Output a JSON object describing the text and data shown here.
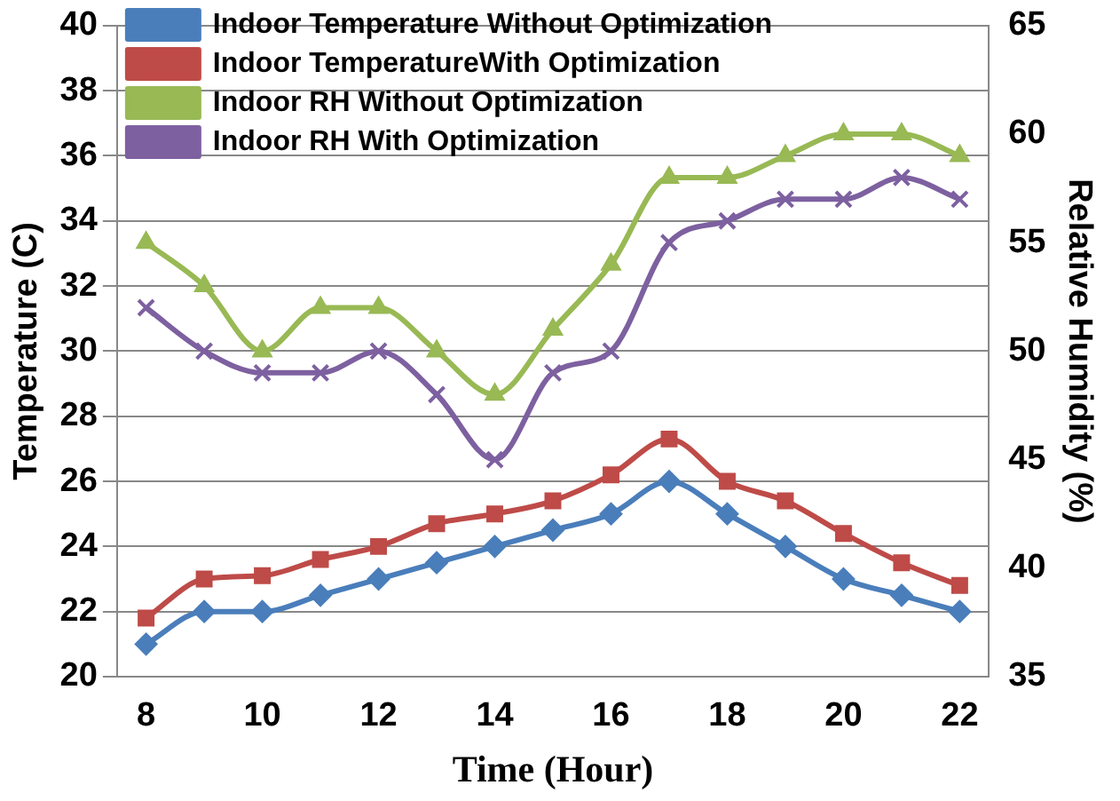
{
  "chart_data": {
    "type": "line",
    "xlabel": "Time (Hour)",
    "ylabel": "Temperature (C)",
    "y2label": "Relative Humidity (%)",
    "x": [
      8,
      9,
      10,
      11,
      12,
      13,
      14,
      15,
      16,
      17,
      18,
      19,
      20,
      21,
      22
    ],
    "xlim": [
      7.5,
      22.5
    ],
    "xticks": [
      8,
      10,
      12,
      14,
      16,
      18,
      20,
      22
    ],
    "ylim": [
      20,
      40
    ],
    "yticks": [
      20,
      22,
      24,
      26,
      28,
      30,
      32,
      34,
      36,
      38,
      40
    ],
    "y2lim": [
      35,
      65
    ],
    "y2ticks": [
      35,
      40,
      45,
      50,
      55,
      60,
      65
    ],
    "grid": "y",
    "legend": "top left",
    "series": [
      {
        "name": "Indoor Temperature Without Optimization",
        "color": "#4a7ebb",
        "marker": "diamond",
        "values": [
          21,
          22,
          22,
          22.5,
          23,
          23.5,
          24,
          24.5,
          25,
          26,
          25,
          24,
          23,
          22.5,
          22
        ]
      },
      {
        "name": "Indoor TemperatureWith Optimization",
        "color": "#be4b48",
        "marker": "square",
        "values": [
          21.8,
          23,
          23.1,
          23.6,
          24,
          24.7,
          25,
          25.4,
          26.2,
          27.3,
          26,
          25.4,
          24.4,
          23.5,
          22.8
        ]
      },
      {
        "name": "Indoor RH Without Optimization",
        "color": "#98b954",
        "marker": "triangle",
        "axis": "y2",
        "values": [
          55,
          53,
          50,
          52,
          52,
          50,
          48,
          51,
          54,
          58,
          58,
          59,
          60,
          60,
          59
        ]
      },
      {
        "name": "Indoor RH With Optimization",
        "color": "#7d60a0",
        "marker": "cross",
        "axis": "y2",
        "values": [
          52,
          50,
          49,
          49,
          50,
          48,
          45,
          49,
          50,
          55,
          56,
          57,
          57,
          58,
          57
        ]
      }
    ]
  }
}
